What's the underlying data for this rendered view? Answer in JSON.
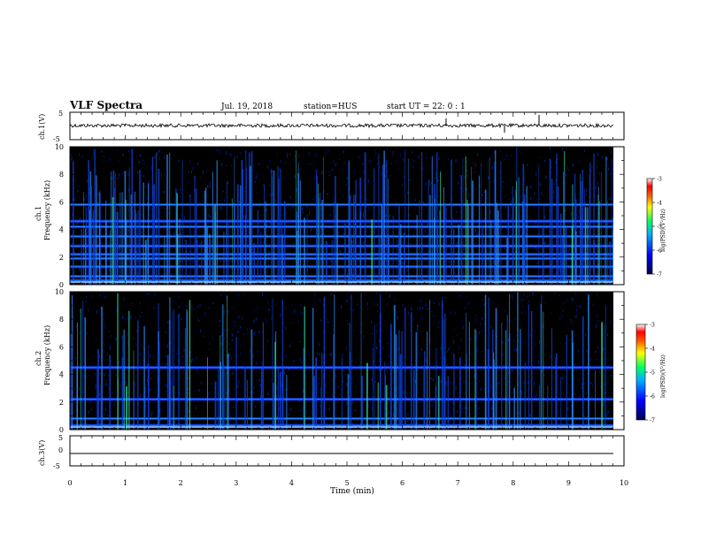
{
  "header": {
    "title": "VLF Spectra",
    "date": "Jul. 19, 2018",
    "station": "station=HUS",
    "start": "start UT =  22: 0  : 1"
  },
  "colors": {
    "background": "#000000",
    "colorbar": [
      "#000060",
      "#0000ff",
      "#00a0ff",
      "#00ff80",
      "#ffff00",
      "#ff8000",
      "#ff0000",
      "#ffffff"
    ],
    "trace": "#000000",
    "burst": "#3aa0ff"
  },
  "chart_data": [
    {
      "type": "line",
      "ylabel": "ch.1(V)",
      "ylim": [
        -5,
        5
      ],
      "yticks": [
        "5",
        "-5"
      ],
      "xlim": [
        0,
        10
      ],
      "description_value": "noisy baseline near 0 V"
    },
    {
      "type": "heatmap",
      "ylabel_top": "ch.1",
      "ylabel": "Frequency (kHz)",
      "ylim": [
        0,
        10
      ],
      "yticks": [
        "0",
        "2",
        "4",
        "6",
        "8",
        "10"
      ],
      "xlim": [
        0,
        10
      ],
      "bands_khz": [
        0.3,
        0.6,
        1.3,
        1.9,
        2.2,
        2.8,
        3.5,
        4.2,
        4.6,
        5.8
      ],
      "colorbar": {
        "label": "log(PSD)(V²/Hz)",
        "range": [
          -7,
          -3
        ],
        "ticks": [
          "-3",
          "-4",
          "-5",
          "-6",
          "-7"
        ]
      }
    },
    {
      "type": "heatmap",
      "ylabel_top": "ch.2",
      "ylabel": "Frequency (kHz)",
      "ylim": [
        0,
        10
      ],
      "yticks": [
        "0",
        "2",
        "4",
        "6",
        "8",
        "10"
      ],
      "xlim": [
        0,
        10
      ],
      "bands_khz": [
        0.3,
        0.8,
        2.2,
        4.5
      ],
      "colorbar": {
        "label": "log(PSD)(V²/Hz)",
        "range": [
          -7,
          -3
        ],
        "ticks": [
          "-3",
          "-4",
          "-5",
          "-6",
          "-7"
        ]
      }
    },
    {
      "type": "line",
      "ylabel": "ch.3(V)",
      "ylim": [
        -5,
        5
      ],
      "yticks": [
        "5",
        "0",
        "-5"
      ],
      "xlim": [
        0,
        10
      ],
      "xlabel": "Time (min)",
      "xticks": [
        "0",
        "1",
        "2",
        "3",
        "4",
        "5",
        "6",
        "7",
        "8",
        "9",
        "10"
      ],
      "description_value": "flat line near -1.5 V"
    }
  ]
}
